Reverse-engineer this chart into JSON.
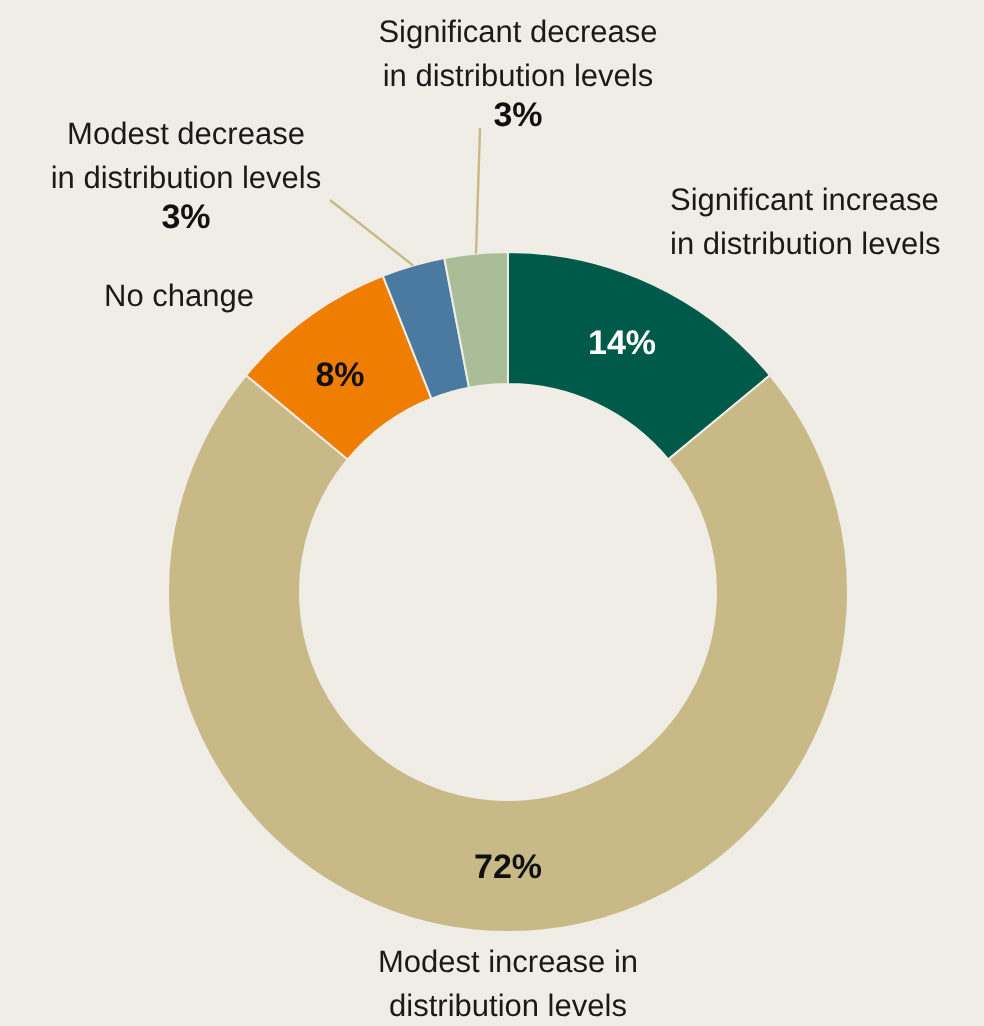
{
  "chart_data": {
    "type": "donut",
    "categories": [
      "Significant increase in distribution levels",
      "Modest increase in distribution levels",
      "No change",
      "Modest decrease in distribution levels",
      "Significant decrease in distribution levels"
    ],
    "values": [
      14,
      72,
      8,
      3,
      3
    ],
    "value_labels": [
      "14%",
      "72%",
      "8%",
      "3%",
      "3%"
    ],
    "colors": [
      "#005a4a",
      "#c8b987",
      "#ef7d00",
      "#4a7aa0",
      "#a8bd98"
    ]
  }
}
